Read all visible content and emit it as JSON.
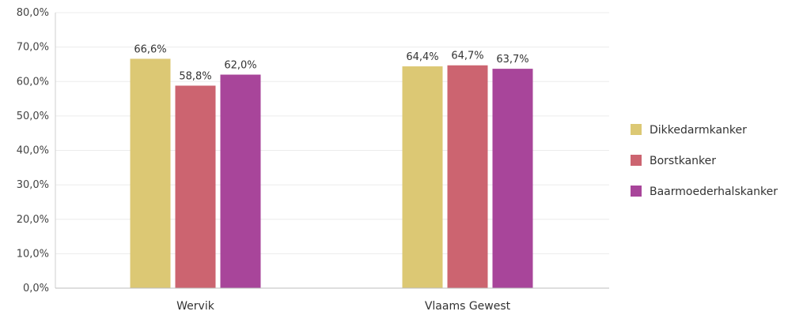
{
  "chart_data": {
    "type": "bar",
    "categories": [
      "Wervik",
      "Vlaams Gewest"
    ],
    "series": [
      {
        "name": "Dikkedarmkanker",
        "values": [
          66.6,
          64.4
        ],
        "labels": [
          "66,6%",
          "64,4%"
        ],
        "color": "#dcc874"
      },
      {
        "name": "Borstkanker",
        "values": [
          58.8,
          64.7
        ],
        "labels": [
          "58,8%",
          "64,7%"
        ],
        "color": "#cc6470"
      },
      {
        "name": "Baarmoederhalskanker",
        "values": [
          62.0,
          63.7
        ],
        "labels": [
          "62,0%",
          "63,7%"
        ],
        "color": "#a8459a"
      }
    ],
    "yticks": [
      "0,0%",
      "10,0%",
      "20,0%",
      "30,0%",
      "40,0%",
      "50,0%",
      "60,0%",
      "70,0%",
      "80,0%"
    ],
    "ylim": [
      0,
      80
    ],
    "grid": true,
    "legend_position": "right",
    "title": "",
    "xlabel": "",
    "ylabel": ""
  }
}
